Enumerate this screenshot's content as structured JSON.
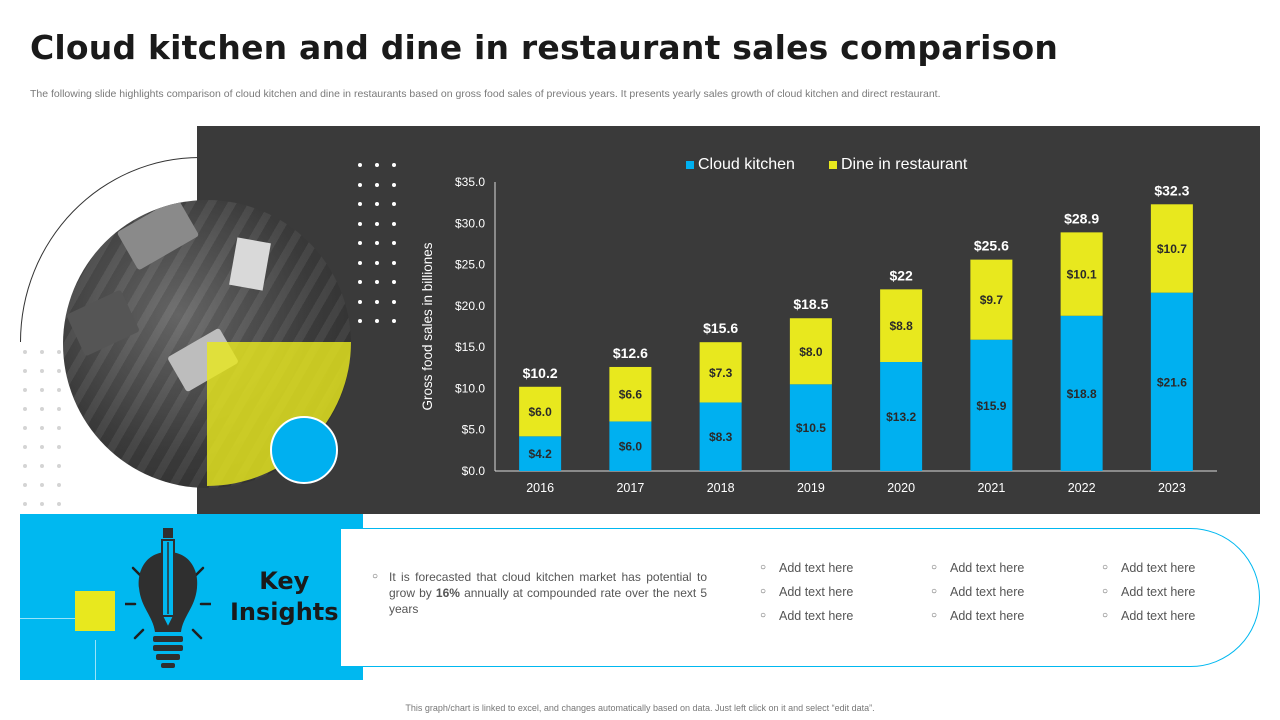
{
  "title": "Cloud kitchen and dine in restaurant sales comparison",
  "subtitle": "The following slide highlights comparison of cloud kitchen and dine in restaurants based on gross food sales of previous years. It presents yearly sales growth of cloud kitchen and direct restaurant.",
  "colors": {
    "cloud": "#00b0f0",
    "dine": "#e8e81e",
    "panel": "#3a3a3a"
  },
  "chart_data": {
    "type": "bar",
    "stacked": true,
    "categories": [
      "2016",
      "2017",
      "2018",
      "2019",
      "2020",
      "2021",
      "2022",
      "2023"
    ],
    "series": [
      {
        "name": "Cloud kitchen",
        "values": [
          4.2,
          6.0,
          8.3,
          10.5,
          13.2,
          15.9,
          18.8,
          21.6
        ],
        "labels": [
          "$4.2",
          "$6.0",
          "$8.3",
          "$10.5",
          "$13.2",
          "$15.9",
          "$18.8",
          "$21.6"
        ]
      },
      {
        "name": "Dine in restaurant",
        "values": [
          6.0,
          6.6,
          7.3,
          8.0,
          8.8,
          9.7,
          10.1,
          10.7
        ],
        "labels": [
          "$6.0",
          "$6.6",
          "$7.3",
          "$8.0",
          "$8.8",
          "$9.7",
          "$10.1",
          "$10.7"
        ]
      }
    ],
    "totals": [
      "$10.2",
      "$12.6",
      "$15.6",
      "$18.5",
      "$22",
      "$25.6",
      "$28.9",
      "$32.3"
    ],
    "ylabel": "Gross food sales  in billiones",
    "ylim": [
      0,
      35
    ],
    "yticks": [
      "$0.0",
      "$5.0",
      "$10.0",
      "$15.0",
      "$20.0",
      "$25.0",
      "$30.0",
      "$35.0"
    ],
    "legend_position": "top"
  },
  "insights": {
    "label_line1": "Key",
    "label_line2": "Insights",
    "forecast_pre": "It is forecasted that cloud kitchen market has potential to grow by ",
    "forecast_bold": "16%",
    "forecast_post": " annually at compounded rate over the next 5 years",
    "columns": [
      [
        "Add text here",
        "Add text here",
        "Add text here"
      ],
      [
        "Add text here",
        "Add text here",
        "Add text here"
      ],
      [
        "Add text here",
        "Add text here",
        "Add text here"
      ]
    ]
  },
  "footer": "This graph/chart is linked to excel, and changes automatically based on data. Just left click on it and select “edit data”."
}
